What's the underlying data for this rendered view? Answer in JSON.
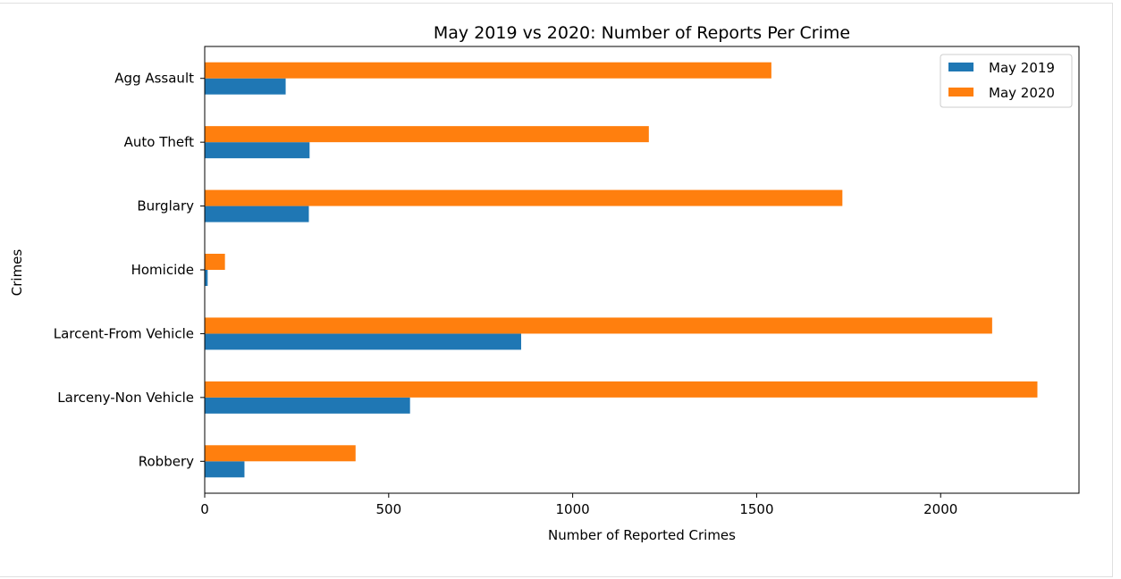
{
  "chart_data": {
    "type": "bar",
    "orientation": "horizontal",
    "title": "May 2019 vs 2020: Number of Reports Per Crime",
    "xlabel": "Number of Reported Crimes",
    "ylabel": "Crimes",
    "categories": [
      "Agg Assault",
      "Auto Theft",
      "Burglary",
      "Homicide",
      "Larcent-From Vehicle",
      "Larceny-Non Vehicle",
      "Robbery"
    ],
    "series": [
      {
        "name": "May 2019",
        "color": "#1f77b4",
        "values": [
          220,
          285,
          283,
          8,
          860,
          558,
          108
        ]
      },
      {
        "name": "May 2020",
        "color": "#ff7f0e",
        "values": [
          1540,
          1207,
          1733,
          55,
          2140,
          2263,
          410
        ]
      }
    ],
    "xlim": [
      0,
      2376
    ],
    "xticks": [
      0,
      500,
      1000,
      1500,
      2000
    ],
    "xtick_labels": [
      "0",
      "500",
      "1000",
      "1500",
      "2000"
    ],
    "legend": "top-right",
    "grid": false
  }
}
